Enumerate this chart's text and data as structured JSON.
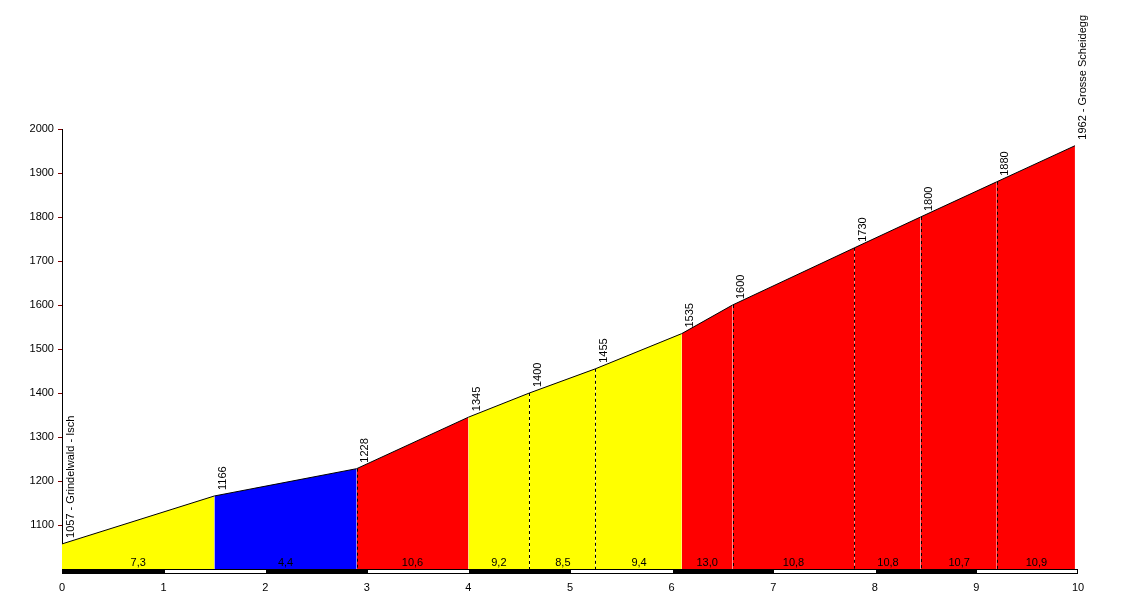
{
  "chart_data": {
    "type": "area",
    "xlim": [
      0,
      10
    ],
    "xticks": [
      0,
      1,
      2,
      3,
      4,
      5,
      6,
      7,
      8,
      9,
      10
    ],
    "ylim": [
      1000,
      2000
    ],
    "yticks": [
      1100,
      1200,
      1300,
      1400,
      1500,
      1600,
      1700,
      1800,
      1900,
      2000
    ],
    "grid": false,
    "legend": false,
    "series": [
      {
        "color": "#ffff00",
        "x": [
          0,
          1.5
        ],
        "values": [
          1057,
          1166
        ],
        "value_labels": [
          "1057 - Grindelwald - Isch",
          "1166"
        ]
      },
      {
        "color": "#0000ff",
        "x": [
          1.5,
          2.9
        ],
        "values": [
          1166,
          1228
        ],
        "value_labels": [
          null,
          "1228"
        ]
      },
      {
        "color": "#ff0000",
        "x": [
          2.9,
          4.0
        ],
        "values": [
          1228,
          1345
        ],
        "value_labels": [
          null,
          "1345"
        ]
      },
      {
        "color": "#ffff00",
        "x": [
          4.0,
          4.6
        ],
        "values": [
          1345,
          1400
        ],
        "value_labels": [
          null,
          "1400"
        ]
      },
      {
        "color": "#ffff00",
        "x": [
          4.6,
          5.25
        ],
        "values": [
          1400,
          1455
        ],
        "value_labels": [
          null,
          "1455"
        ]
      },
      {
        "color": "#ffff00",
        "x": [
          5.25,
          6.1
        ],
        "values": [
          1455,
          1535
        ],
        "value_labels": [
          null,
          "1535"
        ]
      },
      {
        "color": "#ff0000",
        "x": [
          6.1,
          6.6
        ],
        "values": [
          1535,
          1600
        ],
        "value_labels": [
          null,
          "1600"
        ]
      },
      {
        "color": "#ff0000",
        "x": [
          6.6,
          7.8
        ],
        "values": [
          1600,
          1730
        ],
        "value_labels": [
          null,
          "1730"
        ]
      },
      {
        "color": "#ff0000",
        "x": [
          7.8,
          8.45
        ],
        "values": [
          1730,
          1800
        ],
        "value_labels": [
          null,
          "1800"
        ]
      },
      {
        "color": "#ff0000",
        "x": [
          8.45,
          9.2
        ],
        "values": [
          1800,
          1880
        ],
        "value_labels": [
          null,
          "1880"
        ]
      },
      {
        "color": "#ff0000",
        "x": [
          9.2,
          9.97
        ],
        "values": [
          1880,
          1962
        ],
        "value_labels": [
          null,
          "1962 - Grosse Scheidegg"
        ]
      }
    ],
    "ref_lines": [
      {
        "axis": "x",
        "value": 2.9,
        "line_style": "dashed",
        "color": "#000000"
      },
      {
        "axis": "x",
        "value": 4.6,
        "line_style": "dashed",
        "color": "#000000"
      },
      {
        "axis": "x",
        "value": 5.25,
        "line_style": "dashed",
        "color": "#000000"
      },
      {
        "axis": "x",
        "value": 6.6,
        "line_style": "dashed",
        "color": "#000000"
      },
      {
        "axis": "x",
        "value": 7.8,
        "line_style": "dashed",
        "color": "#000000"
      },
      {
        "axis": "x",
        "value": 8.45,
        "line_style": "dashed",
        "color": "#000000"
      },
      {
        "axis": "x",
        "value": 9.2,
        "line_style": "dashed",
        "color": "#000000"
      }
    ],
    "annotations": [
      {
        "text": "7,3",
        "x": 0.75,
        "y": 1000
      },
      {
        "text": "4,4",
        "x": 2.2,
        "y": 1000
      },
      {
        "text": "10,6",
        "x": 3.45,
        "y": 1000
      },
      {
        "text": "9,2",
        "x": 4.3,
        "y": 1000
      },
      {
        "text": "8,5",
        "x": 4.93,
        "y": 1000
      },
      {
        "text": "9,4",
        "x": 5.68,
        "y": 1000
      },
      {
        "text": "13,0",
        "x": 6.35,
        "y": 1000
      },
      {
        "text": "10,8",
        "x": 7.2,
        "y": 1000
      },
      {
        "text": "10,8",
        "x": 8.13,
        "y": 1000
      },
      {
        "text": "10,7",
        "x": 8.83,
        "y": 1000
      },
      {
        "text": "10,9",
        "x": 9.59,
        "y": 1000
      }
    ]
  }
}
